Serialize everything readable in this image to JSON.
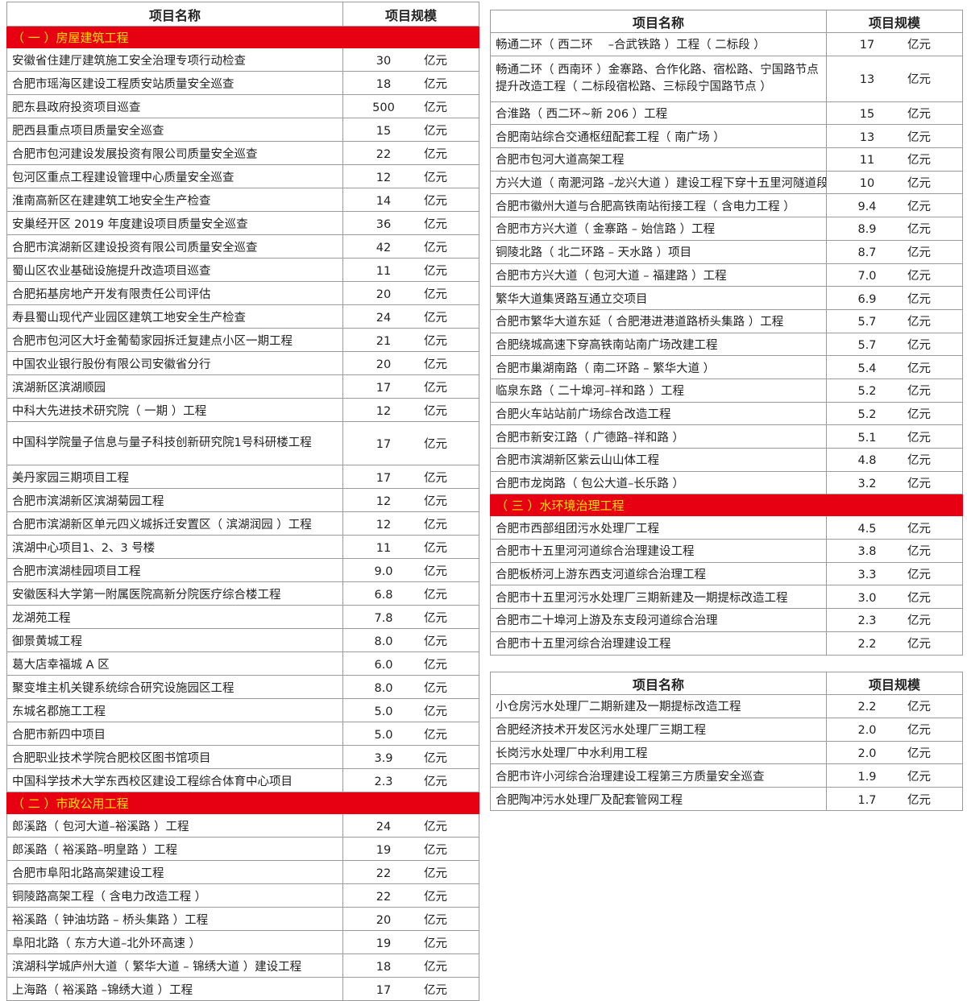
{
  "header": {
    "name": "项目名称",
    "scale": "项目规模"
  },
  "unit": "亿元",
  "colors": {
    "section_bg": "#e60012",
    "section_text": "#ffe000"
  },
  "left_table": [
    {
      "section": "（ 一 ）房屋建筑工程"
    },
    {
      "name": "安徽省住建厅建筑施工安全治理专项行动检查",
      "value": "30"
    },
    {
      "name": "合肥市瑶海区建设工程质安站质量安全巡查",
      "value": "18"
    },
    {
      "name": "肥东县政府投资项目巡查",
      "value": "500"
    },
    {
      "name": "肥西县重点项目质量安全巡查",
      "value": "15"
    },
    {
      "name": "合肥市包河建设发展投资有限公司质量安全巡查",
      "value": "22"
    },
    {
      "name": "包河区重点工程建设管理中心质量安全巡查",
      "value": "12"
    },
    {
      "name": "淮南高新区在建建筑工地安全生产检查",
      "value": "14"
    },
    {
      "name": "安巢经开区 2019 年度建设项目质量安全巡查",
      "value": "36"
    },
    {
      "name": "合肥市滨湖新区建设投资有限公司质量安全巡查",
      "value": "42"
    },
    {
      "name": "蜀山区农业基础设施提升改造项目巡查",
      "value": "11"
    },
    {
      "name": "合肥拓基房地产开发有限责任公司评估",
      "value": "20"
    },
    {
      "name": "寿县蜀山现代产业园区建筑工地安全生产检查",
      "value": "24"
    },
    {
      "name": "合肥市包河区大圩金葡萄家园拆迁复建点小区一期工程",
      "value": "21"
    },
    {
      "name": "中国农业银行股份有限公司安徽省分行",
      "value": "20"
    },
    {
      "name": "滨湖新区滨湖顺园",
      "value": "17"
    },
    {
      "name": "中科大先进技术研究院（ 一期 ）工程",
      "value": "12"
    },
    {
      "name": "中国科学院量子信息与量子科技创新研究院1号科研楼工程",
      "value": "17",
      "tall": true
    },
    {
      "name": "美丹家园三期项目工程",
      "value": "17"
    },
    {
      "name": "合肥市滨湖新区滨湖菊园工程",
      "value": "12"
    },
    {
      "name": "合肥市滨湖新区单元四义城拆迁安置区（ 滨湖润园 ）工程",
      "value": "12"
    },
    {
      "name": "滨湖中心项目1、2、3 号楼",
      "value": "11"
    },
    {
      "name": "合肥市滨湖桂园项目工程",
      "value": "9.0"
    },
    {
      "name": "安徽医科大学第一附属医院高新分院医疗综合楼工程",
      "value": "6.8"
    },
    {
      "name": "龙湖苑工程",
      "value": "7.8"
    },
    {
      "name": "御景黄城工程",
      "value": "8.0"
    },
    {
      "name": "葛大店幸福城 A 区",
      "value": "6.0"
    },
    {
      "name": "聚变堆主机关键系统综合研究设施园区工程",
      "value": "8.0"
    },
    {
      "name": "东城名郡施工工程",
      "value": "5.0"
    },
    {
      "name": "合肥市新四中项目",
      "value": "5.0"
    },
    {
      "name": "合肥职业技术学院合肥校区图书馆项目",
      "value": "3.9"
    },
    {
      "name": "中国科学技术大学东西校区建设工程综合体育中心项目",
      "value": "2.3"
    },
    {
      "section": "（ 二 ）市政公用工程"
    },
    {
      "name": "郎溪路（ 包河大道–裕溪路 ）工程",
      "value": "24"
    },
    {
      "name": "郎溪路（ 裕溪路–明皇路 ）工程",
      "value": "19"
    },
    {
      "name": "合肥市阜阳北路高架建设工程",
      "value": "22"
    },
    {
      "name": "铜陵路高架工程（ 含电力改造工程 ）",
      "value": "22"
    },
    {
      "name": "裕溪路（ 钟油坊路 – 桥头集路 ）工程",
      "value": "20"
    },
    {
      "name": "阜阳北路（ 东方大道–北外环高速 ）",
      "value": "19"
    },
    {
      "name": "滨湖科学城庐州大道（ 繁华大道 – 锦绣大道 ）建设工程",
      "value": "18"
    },
    {
      "name": "上海路（ 裕溪路 –锦绣大道 ）工程",
      "value": "17"
    }
  ],
  "right_top_table": [
    {
      "name": "畅通二环（ 西二环　 –合武铁路 ）工程（ 二标段 ）",
      "value": "17"
    },
    {
      "name": "畅通二环（ 西南环 ）金寨路、合作化路、宿松路、宁国路节点提升改造工程（ 二标段宿松路、三标段宁国路节点 ）",
      "value": "13",
      "tall": true
    },
    {
      "name": "合淮路（ 西二环~新 206 ）工程",
      "value": "15"
    },
    {
      "name": "合肥南站综合交通枢纽配套工程（ 南广场 ）",
      "value": "13"
    },
    {
      "name": "合肥市包河大道高架工程",
      "value": "11"
    },
    {
      "name": "方兴大道（ 南淝河路 –龙兴大道 ）建设工程下穿十五里河隧道段项目",
      "value": "10"
    },
    {
      "name": "合肥市徽州大道与合肥高铁南站衔接工程（ 含电力工程 ）",
      "value": "9.4"
    },
    {
      "name": "合肥市方兴大道（ 金寨路 – 始信路 ）工程",
      "value": "8.9"
    },
    {
      "name": "铜陵北路（ 北二环路 – 天水路 ）项目",
      "value": "8.7"
    },
    {
      "name": "合肥市方兴大道（ 包河大道 – 福建路 ）工程",
      "value": "7.0"
    },
    {
      "name": "繁华大道集贤路互通立交项目",
      "value": "6.9"
    },
    {
      "name": "合肥市繁华大道东延（ 合肥港进港道路桥头集路 ）工程",
      "value": "5.7"
    },
    {
      "name": "合肥绕城高速下穿高铁南站南广场改建工程",
      "value": "5.7"
    },
    {
      "name": "合肥市巢湖南路（ 南二环路 – 繁华大道 ）",
      "value": "5.4"
    },
    {
      "name": "临泉东路（ 二十埠河–祥和路 ）工程",
      "value": "5.2"
    },
    {
      "name": "合肥火车站站前广场综合改造工程",
      "value": "5.2"
    },
    {
      "name": "合肥市新安江路（ 广德路–祥和路 ）",
      "value": "5.1"
    },
    {
      "name": "合肥市滨湖新区紫云山山体工程",
      "value": "4.8"
    },
    {
      "name": "合肥市龙岗路（ 包公大道–长乐路 ）",
      "value": "3.2"
    },
    {
      "section": "（ 三 ）水环境治理工程"
    },
    {
      "name": "合肥市西部组团污水处理厂工程",
      "value": "4.5"
    },
    {
      "name": "合肥市十五里河河道综合治理建设工程",
      "value": "3.8"
    },
    {
      "name": "合肥板桥河上游东西支河道综合治理工程",
      "value": "3.3"
    },
    {
      "name": "合肥市十五里河污水处理厂三期新建及一期提标改造工程",
      "value": "3.0"
    },
    {
      "name": "合肥市二十埠河上游及东支段河道综合治理",
      "value": "2.3"
    },
    {
      "name": "合肥市十五里河综合治理建设工程",
      "value": "2.2"
    }
  ],
  "right_bottom_table": [
    {
      "name": "小仓房污水处理厂二期新建及一期提标改造工程",
      "value": "2.2"
    },
    {
      "name": "合肥经济技术开发区污水处理厂三期工程",
      "value": "2.0"
    },
    {
      "name": "长岗污水处理厂中水利用工程",
      "value": "2.0"
    },
    {
      "name": "合肥市许小河综合治理建设工程第三方质量安全巡查",
      "value": "1.9"
    },
    {
      "name": "合肥陶冲污水处理厂及配套管网工程",
      "value": "1.7"
    }
  ]
}
